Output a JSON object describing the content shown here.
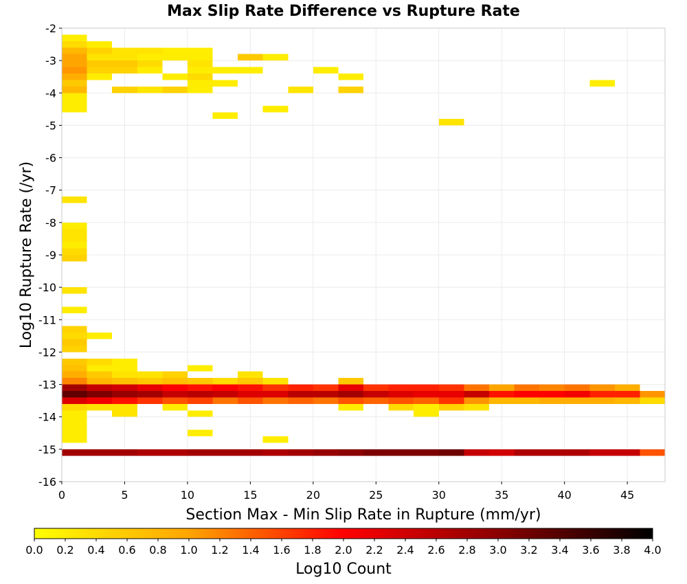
{
  "chart_data": {
    "type": "heatmap",
    "title": "Max Slip Rate Difference vs Rupture Rate",
    "xlabel": "Section Max - Min Slip Rate in Rupture (mm/yr)",
    "ylabel": "Log10 Rupture Rate (/yr)",
    "xlim": [
      0,
      48
    ],
    "ylim": [
      -16,
      -2
    ],
    "x_bin_width": 2,
    "y_bin_height": 0.2,
    "x_ticks": [
      "0",
      "5",
      "10",
      "15",
      "20",
      "25",
      "30",
      "35",
      "40",
      "45"
    ],
    "y_ticks": [
      "-2",
      "-3",
      "-4",
      "-5",
      "-6",
      "-7",
      "-8",
      "-9",
      "-10",
      "-11",
      "-12",
      "-13",
      "-14",
      "-15",
      "-16"
    ],
    "grid": true,
    "colorbar": {
      "label": "Log10 Count",
      "range": [
        0,
        4
      ],
      "ticks": [
        "0.0",
        "0.2",
        "0.4",
        "0.6",
        "0.8",
        "1.0",
        "1.2",
        "1.4",
        "1.6",
        "1.8",
        "2.0",
        "2.2",
        "2.4",
        "2.6",
        "2.8",
        "3.0",
        "3.2",
        "3.4",
        "3.6",
        "3.8",
        "4.0"
      ],
      "colors": [
        "#ffff00",
        "#ffa500",
        "#ff0000",
        "#8b0000",
        "#000000"
      ],
      "position": "bottom"
    },
    "cell_columns": [
      "x_min",
      "y_min",
      "log10_count"
    ],
    "cells": [
      [
        0,
        -2.2,
        0.2
      ],
      [
        0,
        -2.4,
        0.4
      ],
      [
        2,
        -2.4,
        0.2
      ],
      [
        0,
        -2.6,
        0.8
      ],
      [
        2,
        -2.6,
        0.5
      ],
      [
        4,
        -2.6,
        0.3
      ],
      [
        6,
        -2.6,
        0.3
      ],
      [
        8,
        -2.6,
        0.2
      ],
      [
        10,
        -2.6,
        0.2
      ],
      [
        0,
        -2.8,
        1.0
      ],
      [
        2,
        -2.8,
        0.3
      ],
      [
        4,
        -2.8,
        0.3
      ],
      [
        6,
        -2.8,
        0.2
      ],
      [
        8,
        -2.8,
        0.2
      ],
      [
        10,
        -2.8,
        0.2
      ],
      [
        14,
        -2.8,
        0.6
      ],
      [
        16,
        -2.8,
        0.2
      ],
      [
        0,
        -3.0,
        1.0
      ],
      [
        2,
        -3.0,
        0.6
      ],
      [
        4,
        -3.0,
        0.6
      ],
      [
        6,
        -3.0,
        0.4
      ],
      [
        10,
        -3.0,
        0.3
      ],
      [
        0,
        -3.2,
        1.1
      ],
      [
        2,
        -3.2,
        0.5
      ],
      [
        4,
        -3.2,
        0.5
      ],
      [
        6,
        -3.2,
        0.2
      ],
      [
        10,
        -3.2,
        0.2
      ],
      [
        12,
        -3.2,
        0.2
      ],
      [
        14,
        -3.2,
        0.2
      ],
      [
        20,
        -3.2,
        0.2
      ],
      [
        0,
        -3.4,
        0.9
      ],
      [
        2,
        -3.4,
        0.2
      ],
      [
        8,
        -3.4,
        0.2
      ],
      [
        10,
        -3.4,
        0.4
      ],
      [
        22,
        -3.4,
        0.2
      ],
      [
        0,
        -3.6,
        0.6
      ],
      [
        10,
        -3.6,
        0.2
      ],
      [
        12,
        -3.6,
        0.2
      ],
      [
        42,
        -3.6,
        0.2
      ],
      [
        0,
        -3.8,
        0.8
      ],
      [
        4,
        -3.8,
        0.5
      ],
      [
        6,
        -3.8,
        0.3
      ],
      [
        8,
        -3.8,
        0.5
      ],
      [
        10,
        -3.8,
        0.2
      ],
      [
        18,
        -3.8,
        0.3
      ],
      [
        22,
        -3.8,
        0.5
      ],
      [
        0,
        -4.0,
        0.2
      ],
      [
        0,
        -4.2,
        0.2
      ],
      [
        0,
        -4.4,
        0.2
      ],
      [
        16,
        -4.4,
        0.2
      ],
      [
        12,
        -4.6,
        0.2
      ],
      [
        30,
        -4.8,
        0.3
      ],
      [
        0,
        -7.2,
        0.3
      ],
      [
        0,
        -8.0,
        0.2
      ],
      [
        0,
        -8.2,
        0.3
      ],
      [
        0,
        -8.4,
        0.3
      ],
      [
        0,
        -8.6,
        0.2
      ],
      [
        0,
        -8.8,
        0.4
      ],
      [
        0,
        -9.0,
        0.5
      ],
      [
        0,
        -10.0,
        0.3
      ],
      [
        0,
        -10.6,
        0.2
      ],
      [
        0,
        -11.2,
        0.5
      ],
      [
        0,
        -11.4,
        0.4
      ],
      [
        2,
        -11.4,
        0.2
      ],
      [
        0,
        -11.6,
        0.6
      ],
      [
        0,
        -11.8,
        0.5
      ],
      [
        0,
        -12.2,
        0.6
      ],
      [
        2,
        -12.2,
        0.4
      ],
      [
        4,
        -12.2,
        0.2
      ],
      [
        0,
        -12.4,
        0.7
      ],
      [
        2,
        -12.4,
        0.2
      ],
      [
        4,
        -12.4,
        0.2
      ],
      [
        10,
        -12.4,
        0.2
      ],
      [
        0,
        -12.6,
        0.9
      ],
      [
        2,
        -12.6,
        0.6
      ],
      [
        4,
        -12.6,
        0.3
      ],
      [
        6,
        -12.6,
        0.3
      ],
      [
        8,
        -12.6,
        0.5
      ],
      [
        14,
        -12.6,
        0.3
      ],
      [
        0,
        -12.8,
        1.2
      ],
      [
        2,
        -12.8,
        0.8
      ],
      [
        4,
        -12.8,
        0.7
      ],
      [
        6,
        -12.8,
        0.6
      ],
      [
        8,
        -12.8,
        0.7
      ],
      [
        10,
        -12.8,
        0.6
      ],
      [
        12,
        -12.8,
        0.4
      ],
      [
        14,
        -12.8,
        0.6
      ],
      [
        16,
        -12.8,
        0.3
      ],
      [
        22,
        -12.8,
        0.6
      ],
      [
        0,
        -13.0,
        2.8
      ],
      [
        2,
        -13.0,
        2.5
      ],
      [
        4,
        -13.0,
        2.4
      ],
      [
        6,
        -13.0,
        2.2
      ],
      [
        8,
        -13.0,
        2.0
      ],
      [
        10,
        -13.0,
        1.9
      ],
      [
        12,
        -13.0,
        2.0
      ],
      [
        14,
        -13.0,
        1.9
      ],
      [
        16,
        -13.0,
        1.7
      ],
      [
        18,
        -13.0,
        1.8
      ],
      [
        20,
        -13.0,
        1.7
      ],
      [
        22,
        -13.0,
        2.2
      ],
      [
        24,
        -13.0,
        1.7
      ],
      [
        26,
        -13.0,
        1.8
      ],
      [
        28,
        -13.0,
        1.8
      ],
      [
        30,
        -13.0,
        1.7
      ],
      [
        32,
        -13.0,
        1.3
      ],
      [
        34,
        -13.0,
        1.0
      ],
      [
        36,
        -13.0,
        1.3
      ],
      [
        38,
        -13.0,
        1.2
      ],
      [
        40,
        -13.0,
        1.3
      ],
      [
        42,
        -13.0,
        1.1
      ],
      [
        44,
        -13.0,
        0.9
      ],
      [
        0,
        -13.2,
        3.3
      ],
      [
        2,
        -13.2,
        3.1
      ],
      [
        4,
        -13.2,
        2.9
      ],
      [
        6,
        -13.2,
        2.8
      ],
      [
        8,
        -13.2,
        2.5
      ],
      [
        10,
        -13.2,
        2.6
      ],
      [
        12,
        -13.2,
        2.5
      ],
      [
        14,
        -13.2,
        2.3
      ],
      [
        16,
        -13.2,
        2.3
      ],
      [
        18,
        -13.2,
        2.6
      ],
      [
        20,
        -13.2,
        2.6
      ],
      [
        22,
        -13.2,
        2.8
      ],
      [
        24,
        -13.2,
        2.5
      ],
      [
        26,
        -13.2,
        2.3
      ],
      [
        28,
        -13.2,
        2.2
      ],
      [
        30,
        -13.2,
        2.2
      ],
      [
        32,
        -13.2,
        2.5
      ],
      [
        34,
        -13.2,
        1.9
      ],
      [
        36,
        -13.2,
        2.0
      ],
      [
        38,
        -13.2,
        2.0
      ],
      [
        40,
        -13.2,
        2.1
      ],
      [
        42,
        -13.2,
        1.8
      ],
      [
        44,
        -13.2,
        1.8
      ],
      [
        46,
        -13.2,
        1.1
      ],
      [
        0,
        -13.4,
        2.3
      ],
      [
        2,
        -13.4,
        2.1
      ],
      [
        4,
        -13.4,
        1.9
      ],
      [
        6,
        -13.4,
        1.7
      ],
      [
        8,
        -13.4,
        1.5
      ],
      [
        10,
        -13.4,
        1.6
      ],
      [
        12,
        -13.4,
        1.3
      ],
      [
        14,
        -13.4,
        1.5
      ],
      [
        16,
        -13.4,
        1.3
      ],
      [
        18,
        -13.4,
        1.4
      ],
      [
        20,
        -13.4,
        1.3
      ],
      [
        22,
        -13.4,
        1.5
      ],
      [
        24,
        -13.4,
        1.4
      ],
      [
        26,
        -13.4,
        1.5
      ],
      [
        28,
        -13.4,
        1.4
      ],
      [
        30,
        -13.4,
        1.7
      ],
      [
        32,
        -13.4,
        1.1
      ],
      [
        34,
        -13.4,
        0.8
      ],
      [
        36,
        -13.4,
        0.8
      ],
      [
        38,
        -13.4,
        0.9
      ],
      [
        40,
        -13.4,
        0.9
      ],
      [
        42,
        -13.4,
        0.9
      ],
      [
        44,
        -13.4,
        0.8
      ],
      [
        46,
        -13.4,
        0.4
      ],
      [
        0,
        -13.6,
        0.4
      ],
      [
        2,
        -13.6,
        0.3
      ],
      [
        4,
        -13.6,
        0.3
      ],
      [
        8,
        -13.6,
        0.2
      ],
      [
        22,
        -13.6,
        0.2
      ],
      [
        26,
        -13.6,
        0.4
      ],
      [
        28,
        -13.6,
        0.2
      ],
      [
        30,
        -13.6,
        0.5
      ],
      [
        32,
        -13.6,
        0.3
      ],
      [
        0,
        -13.8,
        0.2
      ],
      [
        4,
        -13.8,
        0.3
      ],
      [
        10,
        -13.8,
        0.2
      ],
      [
        28,
        -13.8,
        0.2
      ],
      [
        0,
        -14.0,
        0.2
      ],
      [
        0,
        -14.2,
        0.2
      ],
      [
        0,
        -14.4,
        0.2
      ],
      [
        10,
        -14.4,
        0.2
      ],
      [
        0,
        -14.6,
        0.2
      ],
      [
        16,
        -14.6,
        0.2
      ],
      [
        0,
        -15.0,
        2.8
      ],
      [
        2,
        -15.0,
        2.8
      ],
      [
        4,
        -15.0,
        2.8
      ],
      [
        6,
        -15.0,
        2.7
      ],
      [
        8,
        -15.0,
        2.7
      ],
      [
        10,
        -15.0,
        2.8
      ],
      [
        12,
        -15.0,
        2.8
      ],
      [
        14,
        -15.0,
        2.8
      ],
      [
        16,
        -15.0,
        2.7
      ],
      [
        18,
        -15.0,
        2.8
      ],
      [
        20,
        -15.0,
        2.9
      ],
      [
        22,
        -15.0,
        3.0
      ],
      [
        24,
        -15.0,
        3.1
      ],
      [
        26,
        -15.0,
        3.1
      ],
      [
        28,
        -15.0,
        3.1
      ],
      [
        30,
        -15.0,
        3.2
      ],
      [
        32,
        -15.0,
        2.5
      ],
      [
        34,
        -15.0,
        2.4
      ],
      [
        36,
        -15.0,
        2.7
      ],
      [
        38,
        -15.0,
        2.7
      ],
      [
        40,
        -15.0,
        2.7
      ],
      [
        42,
        -15.0,
        2.5
      ],
      [
        44,
        -15.0,
        2.5
      ],
      [
        46,
        -15.0,
        1.5
      ]
    ]
  }
}
